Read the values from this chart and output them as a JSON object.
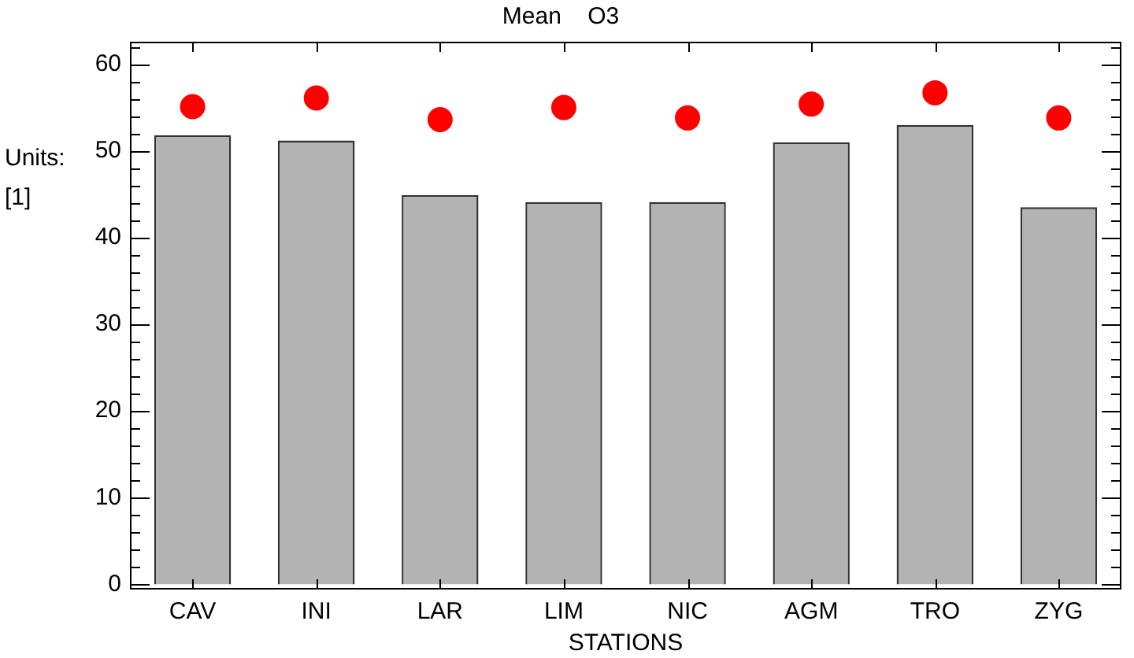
{
  "chart_data": {
    "type": "bar",
    "title": "Mean    O3",
    "xlabel": "STATIONS",
    "ylabel": "Units:\n[1]",
    "categories": [
      "CAV",
      "INI",
      "LAR",
      "LIM",
      "NIC",
      "AGM",
      "TRO",
      "ZYG"
    ],
    "series": [
      {
        "color": "#b3b3b3",
        "values": [
          51.8,
          51.2,
          44.9,
          44.1,
          44.1,
          51.0,
          53.0,
          43.5
        ]
      },
      {
        "type": "scatter",
        "color": "#ff0000",
        "x": [
          "CAV",
          "INI",
          "LAR",
          "LIM",
          "NIC",
          "AGM",
          "TRO",
          "ZYG"
        ],
        "values": [
          55.1,
          56.1,
          53.6,
          55.0,
          53.8,
          55.4,
          56.7,
          53.8
        ]
      }
    ],
    "ylim": [
      -0.5,
      62.5
    ],
    "yticks": [
      0,
      {
        "value": 2,
        "label": null
      },
      {
        "value": 4,
        "label": null
      },
      {
        "value": 6,
        "label": null
      },
      {
        "value": 8,
        "label": null
      },
      10,
      {
        "value": 12,
        "label": null
      },
      {
        "value": 14,
        "label": null
      },
      {
        "value": 16,
        "label": null
      },
      {
        "value": 18,
        "label": null
      },
      20,
      {
        "value": 22,
        "label": null
      },
      {
        "value": 24,
        "label": null
      },
      {
        "value": 26,
        "label": null
      },
      {
        "value": 28,
        "label": null
      },
      30,
      {
        "value": 32,
        "label": null
      },
      {
        "value": 34,
        "label": null
      },
      {
        "value": 36,
        "label": null
      },
      {
        "value": 38,
        "label": null
      },
      40,
      {
        "value": 42,
        "label": null
      },
      {
        "value": 44,
        "label": null
      },
      {
        "value": 46,
        "label": null
      },
      {
        "value": 48,
        "label": null
      },
      50,
      {
        "value": 52,
        "label": null
      },
      {
        "value": 54,
        "label": null
      },
      {
        "value": 56,
        "label": null
      },
      {
        "value": 58,
        "label": null
      },
      60,
      {
        "value": 62,
        "label": null
      }
    ],
    "grid": false,
    "legend": false,
    "marker": "circle"
  }
}
